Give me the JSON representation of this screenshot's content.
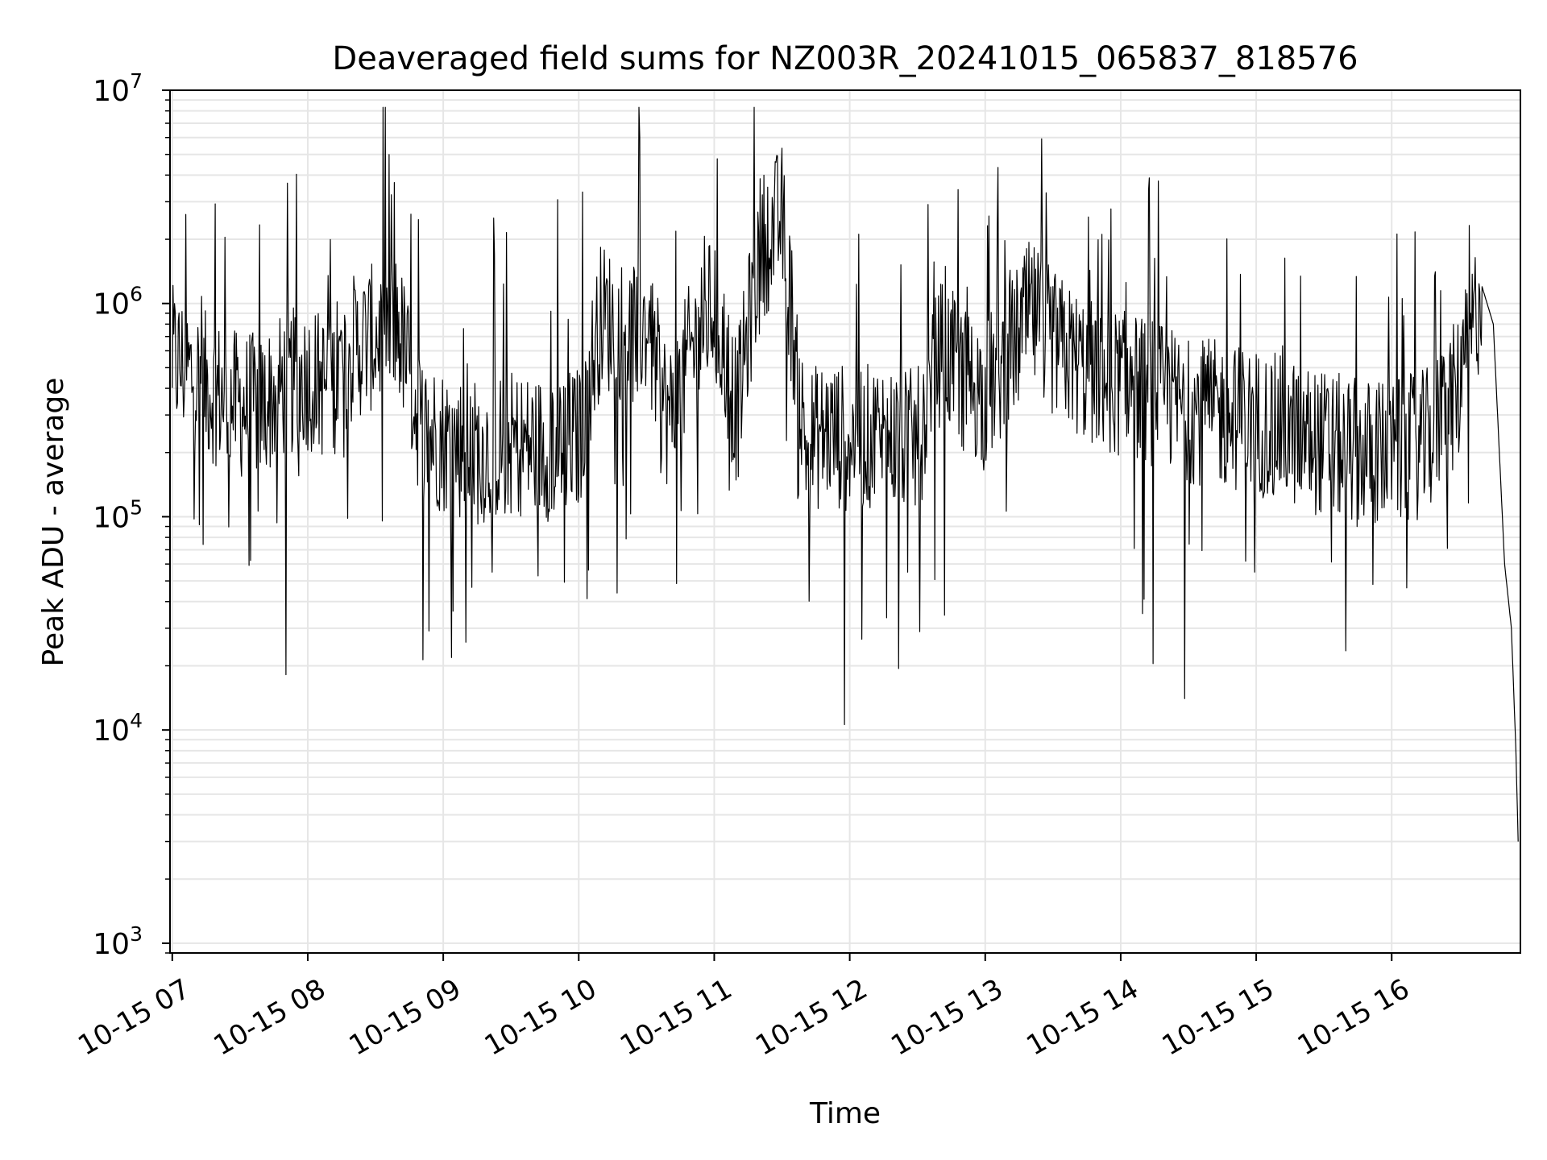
{
  "chart_data": {
    "type": "line",
    "title": "Deaveraged field sums for NZ003R_20241015_065837_818576",
    "xlabel": "Time",
    "ylabel": "Peak ADU - average",
    "yscale": "log",
    "ylim": [
      900,
      10000000
    ],
    "xlim": [
      "10-15 06:59",
      "10-15 16:57"
    ],
    "grid": true,
    "line_color": "#000000",
    "grid_color": "#e6e6e6",
    "x_ticks": [
      {
        "label": "10-15 07",
        "hour": 7
      },
      {
        "label": "10-15 08",
        "hour": 8
      },
      {
        "label": "10-15 09",
        "hour": 9
      },
      {
        "label": "10-15 10",
        "hour": 10
      },
      {
        "label": "10-15 11",
        "hour": 11
      },
      {
        "label": "10-15 12",
        "hour": 12
      },
      {
        "label": "10-15 13",
        "hour": 13
      },
      {
        "label": "10-15 14",
        "hour": 14
      },
      {
        "label": "10-15 15",
        "hour": 15
      },
      {
        "label": "10-15 16",
        "hour": 16
      }
    ],
    "y_ticks": [
      {
        "base": "10",
        "exp": "3",
        "value": 1000
      },
      {
        "base": "10",
        "exp": "4",
        "value": 10000
      },
      {
        "base": "10",
        "exp": "5",
        "value": 100000
      },
      {
        "base": "10",
        "exp": "6",
        "value": 1000000
      },
      {
        "base": "10",
        "exp": "7",
        "value": 10000000
      }
    ],
    "series": [
      {
        "points": [
          [
            "10-15 07:00",
            550000
          ],
          [
            "10-15 07:10",
            450000
          ],
          [
            "10-15 07:20",
            380000
          ],
          [
            "10-15 07:30",
            330000
          ],
          [
            "10-15 07:40",
            330000
          ],
          [
            "10-15 07:50",
            420000
          ],
          [
            "10-15 08:00",
            450000
          ],
          [
            "10-15 08:10",
            400000
          ],
          [
            "10-15 08:20",
            620000
          ],
          [
            "10-15 08:30",
            700000
          ],
          [
            "10-15 08:40",
            800000
          ],
          [
            "10-15 08:50",
            260000
          ],
          [
            "10-15 09:00",
            230000
          ],
          [
            "10-15 09:15",
            200000
          ],
          [
            "10-15 09:30",
            220000
          ],
          [
            "10-15 09:45",
            210000
          ],
          [
            "10-15 10:00",
            230000
          ],
          [
            "10-15 10:10",
            900000
          ],
          [
            "10-15 10:20",
            700000
          ],
          [
            "10-15 10:30",
            800000
          ],
          [
            "10-15 10:40",
            280000
          ],
          [
            "10-15 10:50",
            600000
          ],
          [
            "10-15 11:00",
            1000000
          ],
          [
            "10-15 11:10",
            300000
          ],
          [
            "10-15 11:20",
            1800000
          ],
          [
            "10-15 11:30",
            2500000
          ],
          [
            "10-15 11:40",
            220000
          ],
          [
            "10-15 11:50",
            250000
          ],
          [
            "10-15 12:00",
            230000
          ],
          [
            "10-15 12:15",
            240000
          ],
          [
            "10-15 12:30",
            220000
          ],
          [
            "10-15 12:40",
            600000
          ],
          [
            "10-15 12:50",
            450000
          ],
          [
            "10-15 13:00",
            380000
          ],
          [
            "10-15 13:10",
            550000
          ],
          [
            "10-15 13:20",
            900000
          ],
          [
            "10-15 13:30",
            650000
          ],
          [
            "10-15 13:45",
            480000
          ],
          [
            "10-15 14:00",
            420000
          ],
          [
            "10-15 14:15",
            380000
          ],
          [
            "10-15 14:30",
            320000
          ],
          [
            "10-15 14:45",
            300000
          ],
          [
            "10-15 15:00",
            280000
          ],
          [
            "10-15 15:15",
            250000
          ],
          [
            "10-15 15:30",
            220000
          ],
          [
            "10-15 15:45",
            200000
          ],
          [
            "10-15 16:00",
            200000
          ],
          [
            "10-15 16:15",
            220000
          ],
          [
            "10-15 16:30",
            400000
          ],
          [
            "10-15 16:40",
            1200000
          ],
          [
            "10-15 16:45",
            800000
          ],
          [
            "10-15 16:50",
            60000
          ],
          [
            "10-15 16:53",
            30000
          ],
          [
            "10-15 16:55",
            8000
          ],
          [
            "10-15 16:56",
            3000
          ]
        ]
      }
    ]
  }
}
